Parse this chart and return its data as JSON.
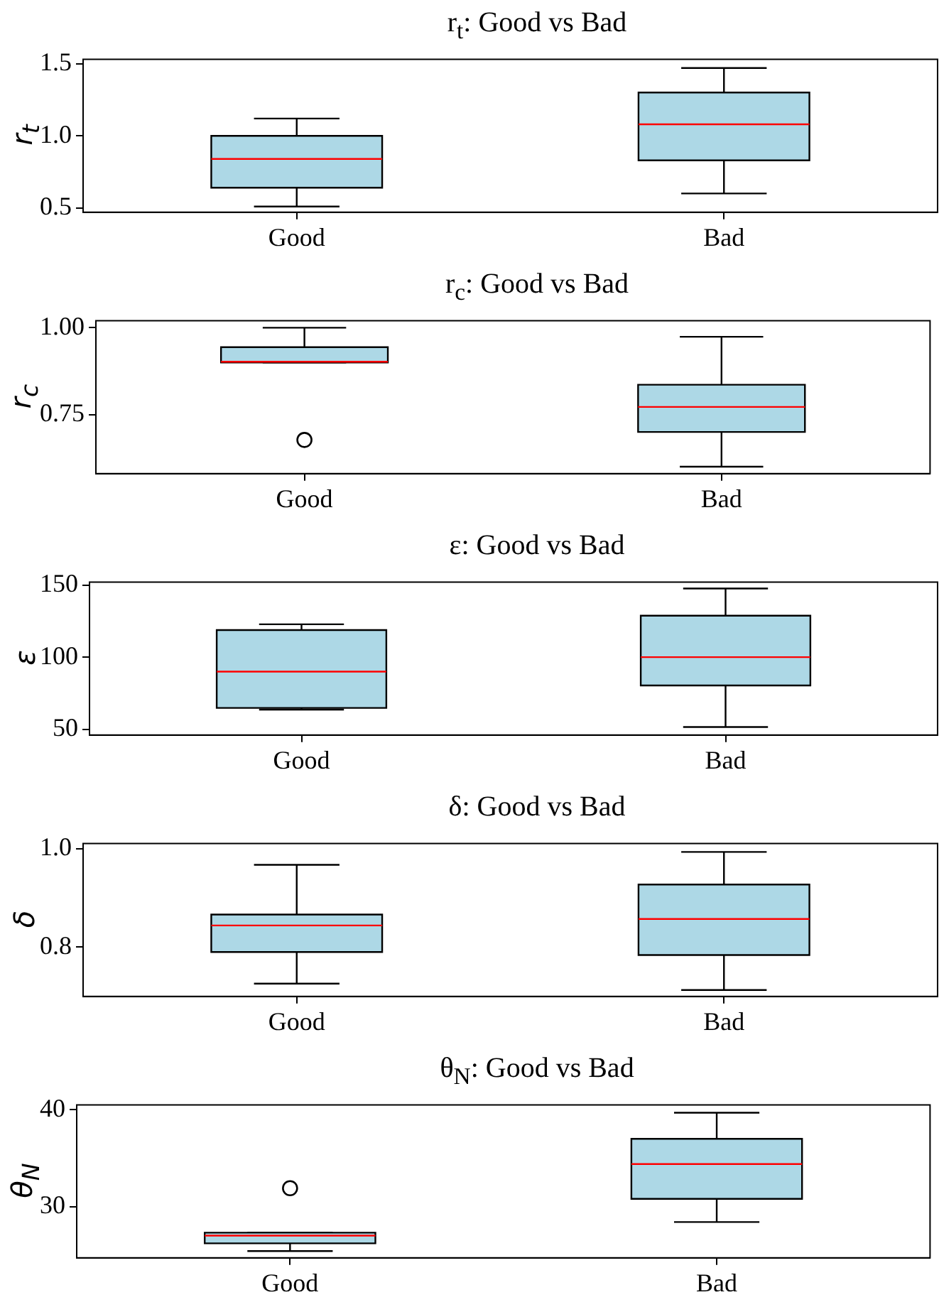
{
  "chart_data": [
    {
      "type": "box",
      "title": "r$_{t}$: Good vs Bad",
      "ylabel": "r$_{t}$",
      "categories": [
        "Good",
        "Bad"
      ],
      "color": "#add8e6",
      "ylim": [
        0.47,
        1.53
      ],
      "yticks": [
        {
          "value": 0.5,
          "label": "0.5"
        },
        {
          "value": 1,
          "label": "1.0"
        },
        {
          "value": 1.5,
          "label": "1.5"
        }
      ],
      "grid": false,
      "legend": false,
      "boxes": [
        {
          "low": 0.51,
          "q1": 0.64,
          "median": 0.84,
          "q3": 1.0,
          "high": 1.12
        },
        {
          "low": 0.6,
          "q1": 0.83,
          "median": 1.08,
          "q3": 1.3,
          "high": 1.47
        }
      ]
    },
    {
      "type": "box",
      "title": "r$_{c}$: Good vs Bad",
      "ylabel": "r$_{c}$",
      "categories": [
        "Good",
        "Bad"
      ],
      "color": "#add8e6",
      "ylim": [
        0.58,
        1.02
      ],
      "yticks": [
        {
          "value": 0.75,
          "label": "0.75"
        },
        {
          "value": 1,
          "label": "1.00"
        }
      ],
      "grid": false,
      "legend": false,
      "boxes": [
        {
          "low": 0.9,
          "q1": 0.9,
          "median": 0.902,
          "q3": 0.944,
          "high": 1.0,
          "outliers": [
            0.677
          ]
        },
        {
          "low": 0.6,
          "q1": 0.7,
          "median": 0.772,
          "q3": 0.836,
          "high": 0.974
        }
      ]
    },
    {
      "type": "box",
      "title": "ε: Good vs Bad",
      "ylabel": "ε",
      "categories": [
        "Good",
        "Bad"
      ],
      "color": "#add8e6",
      "ylim": [
        46,
        152
      ],
      "yticks": [
        50,
        100,
        150
      ],
      "grid": false,
      "legend": false,
      "boxes": [
        {
          "low": 63.6,
          "q1": 64.8,
          "median": 90,
          "q3": 118.8,
          "high": 122.8
        },
        {
          "low": 51.6,
          "q1": 80.4,
          "median": 100,
          "q3": 128.8,
          "high": 147.6
        }
      ]
    },
    {
      "type": "box",
      "title": "δ: Good vs Bad",
      "ylabel": "δ",
      "categories": [
        "Good",
        "Bad"
      ],
      "color": "#add8e6",
      "ylim": [
        0.7,
        1.01
      ],
      "yticks": [
        {
          "value": 0.8,
          "label": "0.8"
        },
        {
          "value": 1,
          "label": "1.0"
        }
      ],
      "grid": false,
      "legend": false,
      "boxes": [
        {
          "low": 0.726,
          "q1": 0.79,
          "median": 0.844,
          "q3": 0.866,
          "high": 0.967
        },
        {
          "low": 0.713,
          "q1": 0.784,
          "median": 0.857,
          "q3": 0.927,
          "high": 0.993
        }
      ]
    },
    {
      "type": "box",
      "title": "θ$_{N}$: Good vs Bad",
      "ylabel": "θ$_{N}$",
      "categories": [
        "Good",
        "Bad"
      ],
      "color": "#add8e6",
      "ylim": [
        24.7,
        40.5
      ],
      "yticks": [
        30,
        40
      ],
      "grid": false,
      "legend": false,
      "boxes": [
        {
          "low": 25.4,
          "q1": 26.2,
          "median": 27.0,
          "q3": 27.3,
          "high": 27.3,
          "outliers": [
            31.9
          ]
        },
        {
          "low": 28.4,
          "q1": 30.8,
          "median": 34.4,
          "q3": 37.0,
          "high": 39.7
        }
      ]
    }
  ]
}
